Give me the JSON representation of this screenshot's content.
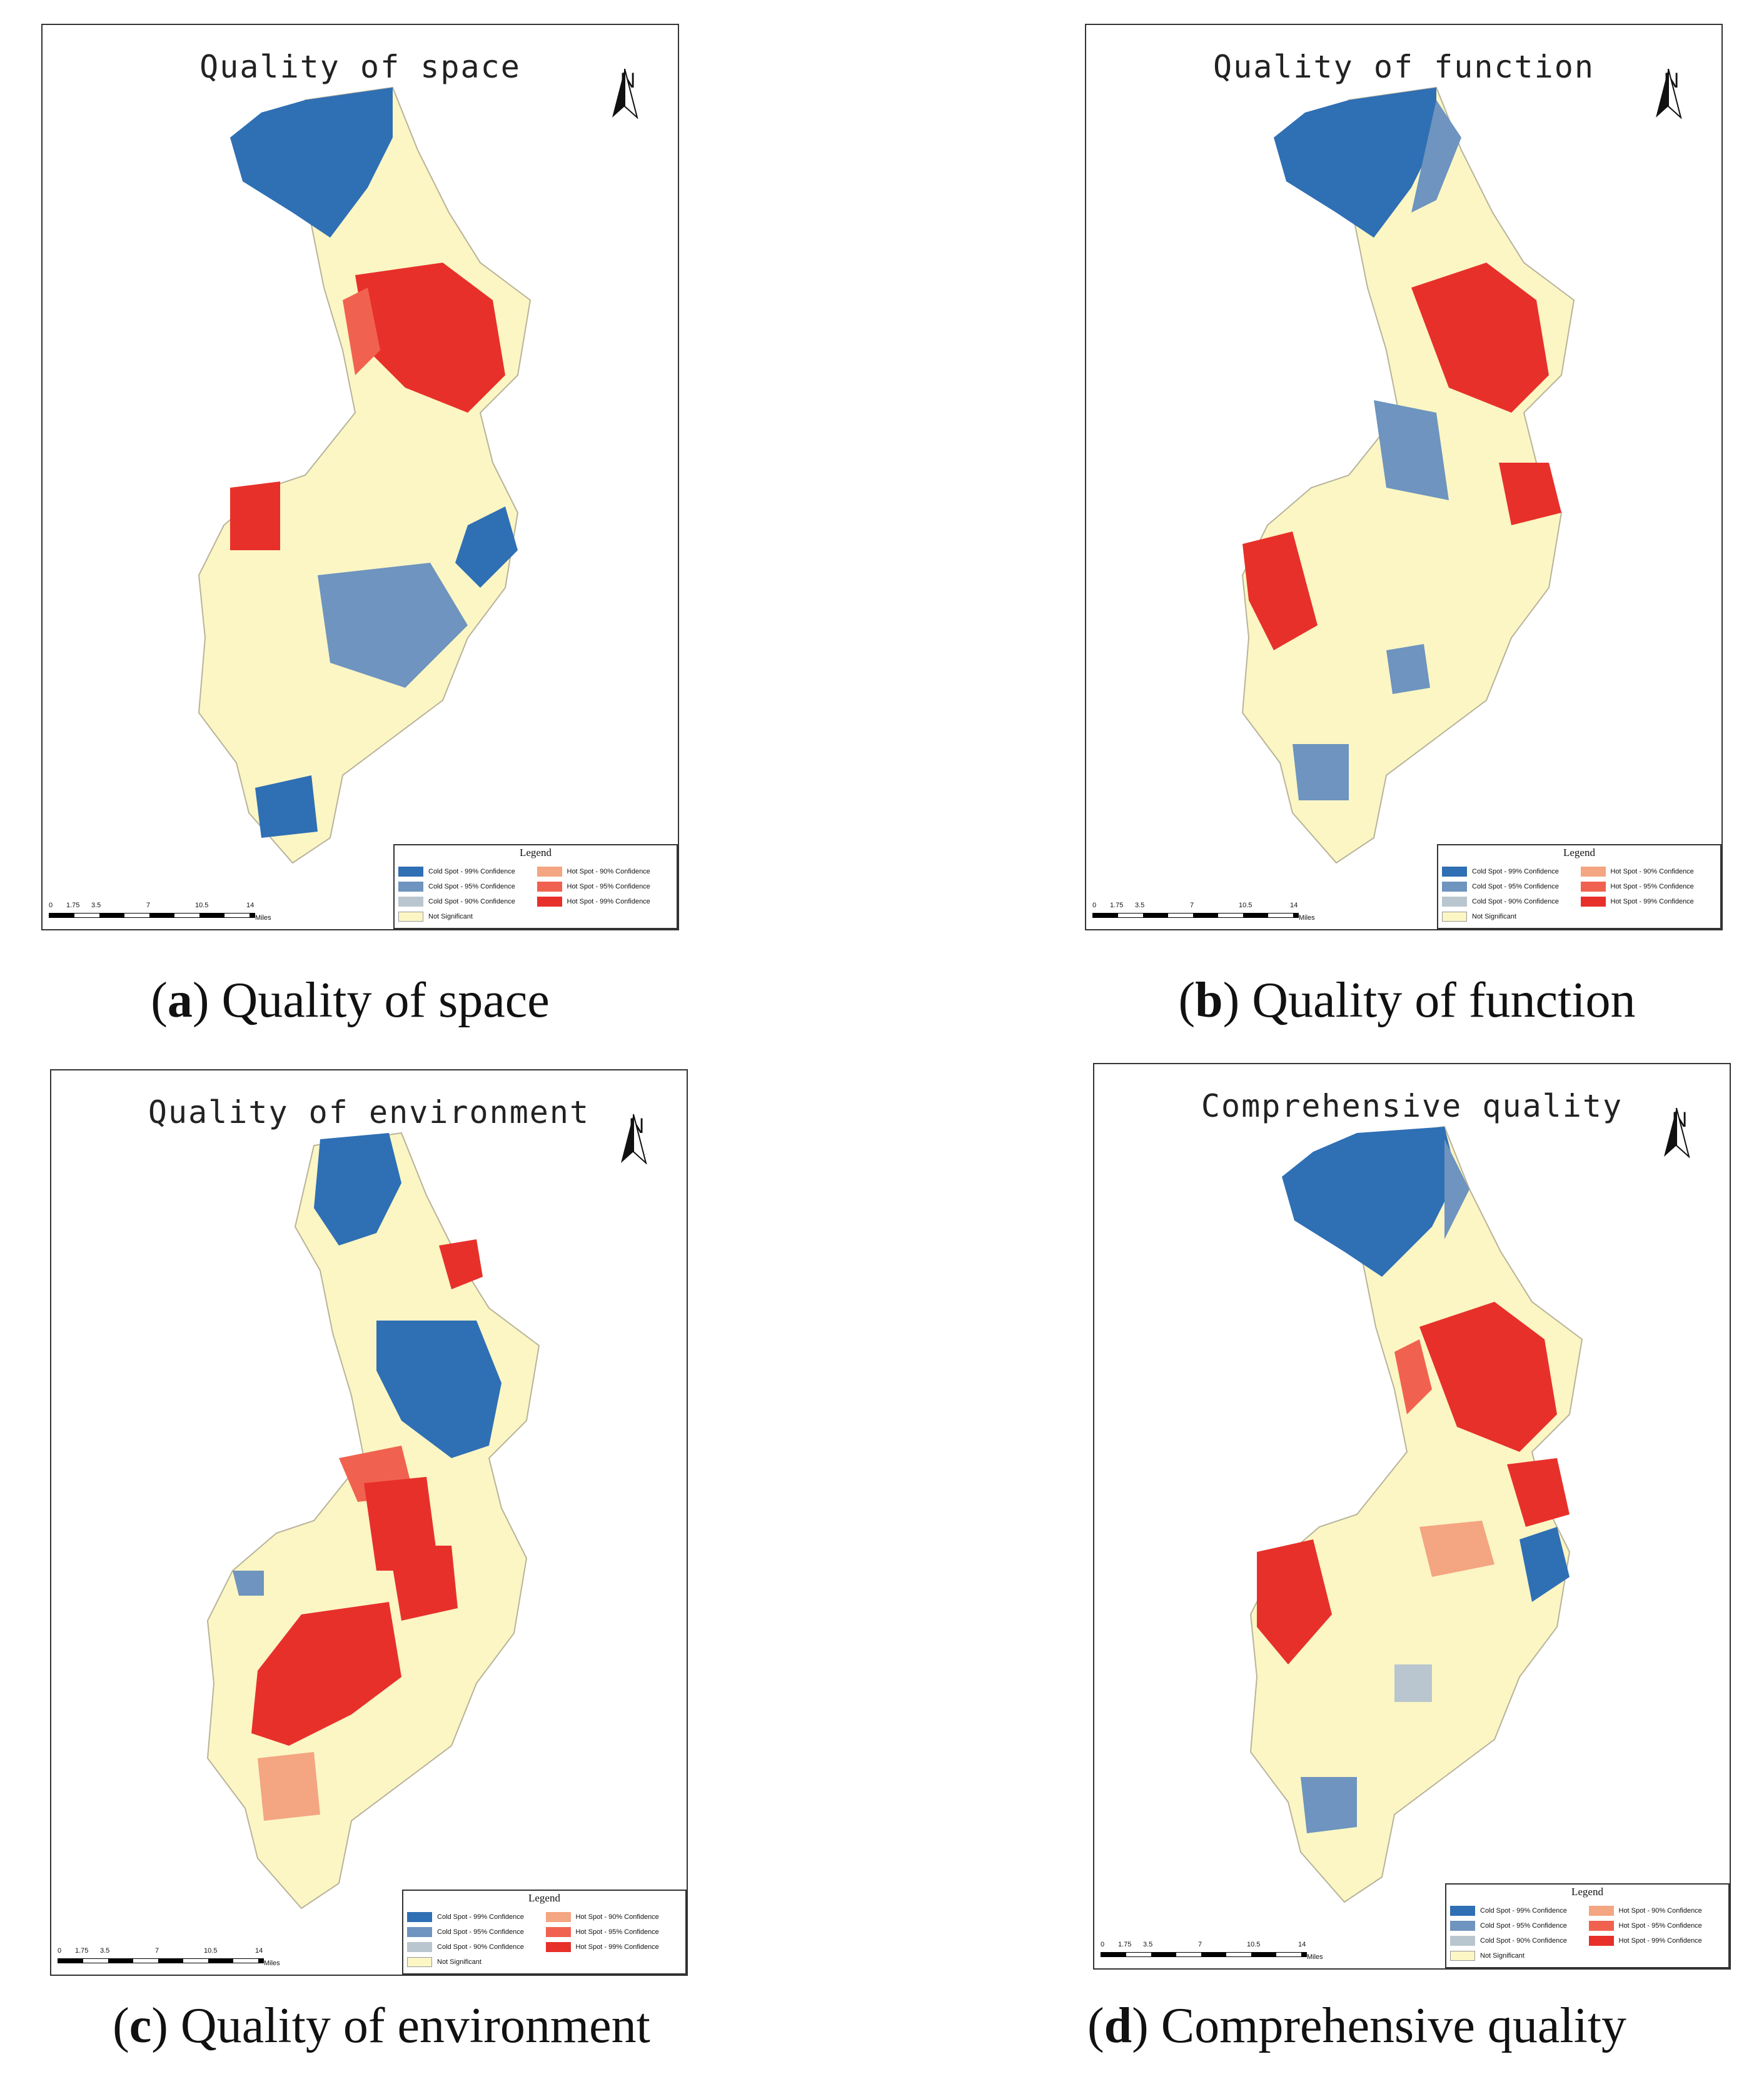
{
  "legend": {
    "title": "Legend",
    "items": [
      {
        "label": "Cold Spot - 99% Confidence",
        "color": "#2f6fb4"
      },
      {
        "label": "Hot Spot - 90% Confidence",
        "color": "#f4a582"
      },
      {
        "label": "Cold Spot - 95% Confidence",
        "color": "#6e94bf"
      },
      {
        "label": "Hot Spot - 95% Confidence",
        "color": "#f0624f"
      },
      {
        "label": "Cold Spot - 90% Confidence",
        "color": "#b9c6cf"
      },
      {
        "label": "Hot Spot - 99% Confidence",
        "color": "#e8302a"
      },
      {
        "label": "Not Significant",
        "color": "#fbf6c4"
      }
    ]
  },
  "north_label": "N",
  "scale": {
    "ticks": [
      "0",
      "1.75",
      "3.5",
      "7",
      "10.5",
      "14"
    ],
    "unit": "Miles"
  },
  "panels": [
    {
      "id": "a",
      "title": "Quality of space",
      "caption_letter": "a",
      "caption_text": "Quality of space",
      "zones": [
        [
          "north-west",
          "cold99"
        ],
        [
          "north-center",
          "hot99"
        ],
        [
          "east-middle",
          "cold99"
        ],
        [
          "west-lobe",
          "hot99"
        ],
        [
          "south",
          "cold99"
        ],
        [
          "south-central",
          "cold95"
        ]
      ]
    },
    {
      "id": "b",
      "title": "Quality of function",
      "caption_letter": "b",
      "caption_text": "Quality of function",
      "zones": [
        [
          "north-west",
          "cold99"
        ],
        [
          "north-center",
          "hot99"
        ],
        [
          "east-middle",
          "hot95"
        ],
        [
          "west-lobe",
          "hot99"
        ],
        [
          "south",
          "cold95"
        ],
        [
          "central",
          "cold95"
        ]
      ]
    },
    {
      "id": "c",
      "title": "Quality of environment",
      "caption_letter": "c",
      "caption_text": "Quality of environment",
      "zones": [
        [
          "north",
          "cold99"
        ],
        [
          "upper-middle",
          "cold99"
        ],
        [
          "center",
          "hot99"
        ],
        [
          "south-west",
          "hot99"
        ],
        [
          "south",
          "hot90"
        ],
        [
          "north-east",
          "hot99"
        ]
      ]
    },
    {
      "id": "d",
      "title": "Comprehensive quality",
      "caption_letter": "d",
      "caption_text": "Comprehensive quality",
      "zones": [
        [
          "north-west",
          "cold99"
        ],
        [
          "north-center",
          "hot99"
        ],
        [
          "east-middle",
          "hot99"
        ],
        [
          "west-lobe",
          "hot99"
        ],
        [
          "east-lower",
          "cold99"
        ],
        [
          "central",
          "hot90"
        ]
      ]
    }
  ]
}
